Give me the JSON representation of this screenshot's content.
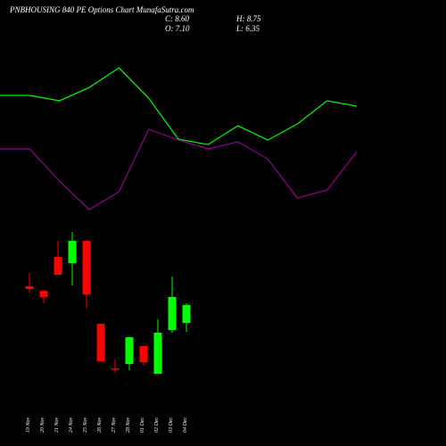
{
  "chart_data": [
    {
      "type": "candlestick",
      "title": "PNBHOUSING 840  PE Options Chart MunafaSutra.com",
      "close_label": "C: 8.60",
      "high_label": "H: 8.75",
      "open_label": "O: 7.10",
      "low_label": "L: 6.35",
      "categories": [
        "19 Nov",
        "20 Nov",
        "21 Nov",
        "24 Nov",
        "25 Nov",
        "26 Nov",
        "27 Nov",
        "28 Nov",
        "01 Dec",
        "02 Dec",
        "03 Dec",
        "04 Dec"
      ],
      "open": [
        10.18,
        9.8,
        12.65,
        12.13,
        14.0,
        7.03,
        3.28,
        3.65,
        5.15,
        2.83,
        6.5,
        7.1
      ],
      "close": [
        9.95,
        9.28,
        11.15,
        14.0,
        9.5,
        3.88,
        3.2,
        5.9,
        3.8,
        6.28,
        9.28,
        8.6
      ],
      "high": [
        11.3,
        9.88,
        14.0,
        14.75,
        14.0,
        7.03,
        4.03,
        5.9,
        5.15,
        7.4,
        11.0,
        8.75
      ],
      "low": [
        9.65,
        8.75,
        11.15,
        10.25,
        8.38,
        3.88,
        2.9,
        3.13,
        3.5,
        2.83,
        6.28,
        6.35
      ],
      "up_color": "#00ff00",
      "down_color": "#ff0000"
    },
    {
      "type": "line",
      "series": [
        {
          "color": "#00ff00",
          "values": [
            26.23,
            26.23,
            25.78,
            26.9,
            28.55,
            26.0,
            22.55,
            22.1,
            23.68,
            22.48,
            23.83,
            25.78,
            25.33
          ]
        },
        {
          "color": "#990099",
          "values": [
            21.73,
            21.73,
            19.03,
            16.63,
            18.13,
            23.38,
            22.48,
            21.73,
            22.33,
            20.9,
            17.6,
            18.28,
            21.5
          ]
        }
      ]
    }
  ]
}
